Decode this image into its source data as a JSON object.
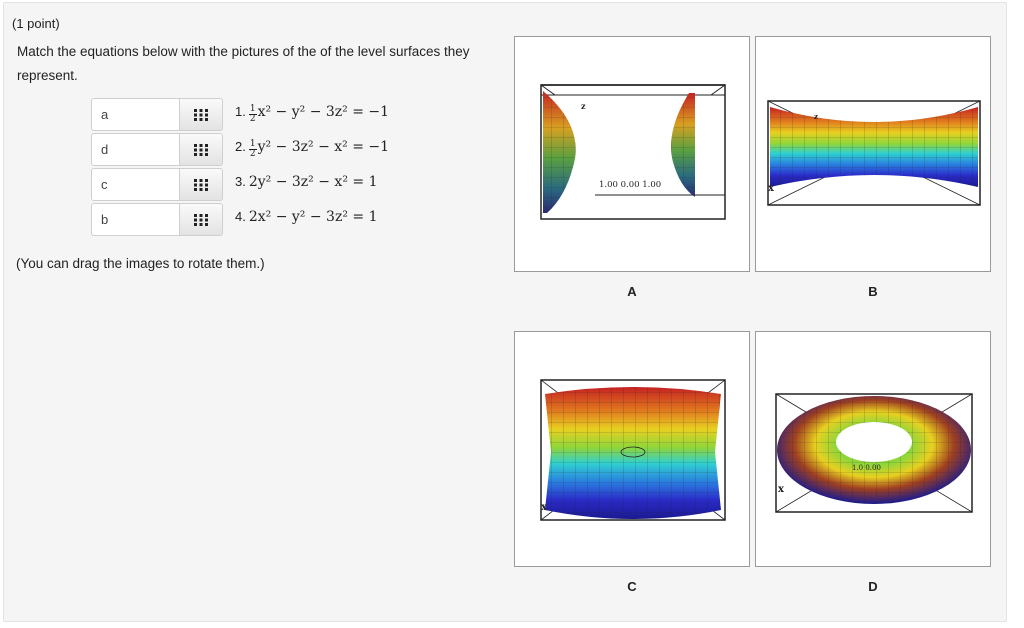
{
  "header": {
    "points": "(1 point)"
  },
  "instructions": "Match the equations below with the pictures of the of the level surfaces they represent.",
  "drag_note": "(You can drag the images to rotate them.)",
  "rows": [
    {
      "answer": "a",
      "number": "1.",
      "coef_num": "1",
      "coef_den": "2",
      "equation": "x² − y² − 3z² = −1"
    },
    {
      "answer": "d",
      "number": "2.",
      "coef_num": "1",
      "coef_den": "2",
      "equation": "y² − 3z² − x² = −1"
    },
    {
      "answer": "c",
      "number": "3.",
      "equation": "2y² − 3z² − x² = 1"
    },
    {
      "answer": "b",
      "number": "4.",
      "equation": "2x² − y² − 3z² = 1"
    }
  ],
  "images": [
    {
      "letter": "A",
      "axis_label": "z",
      "tick_labels": "1.00 0.00 1.00"
    },
    {
      "letter": "B",
      "axis_label": "z",
      "side_label": "x"
    },
    {
      "letter": "C",
      "side_label": "x"
    },
    {
      "letter": "D",
      "side_label": "x",
      "tick_labels": "1.0 0.00"
    }
  ],
  "colors": {
    "panel_bg": "#f5f5f5",
    "rainbow": [
      "#cc2222",
      "#e07a1e",
      "#e8d020",
      "#8fd63a",
      "#2fd0d0",
      "#2a7ee0",
      "#2a2ac8",
      "#1a1a90"
    ]
  }
}
